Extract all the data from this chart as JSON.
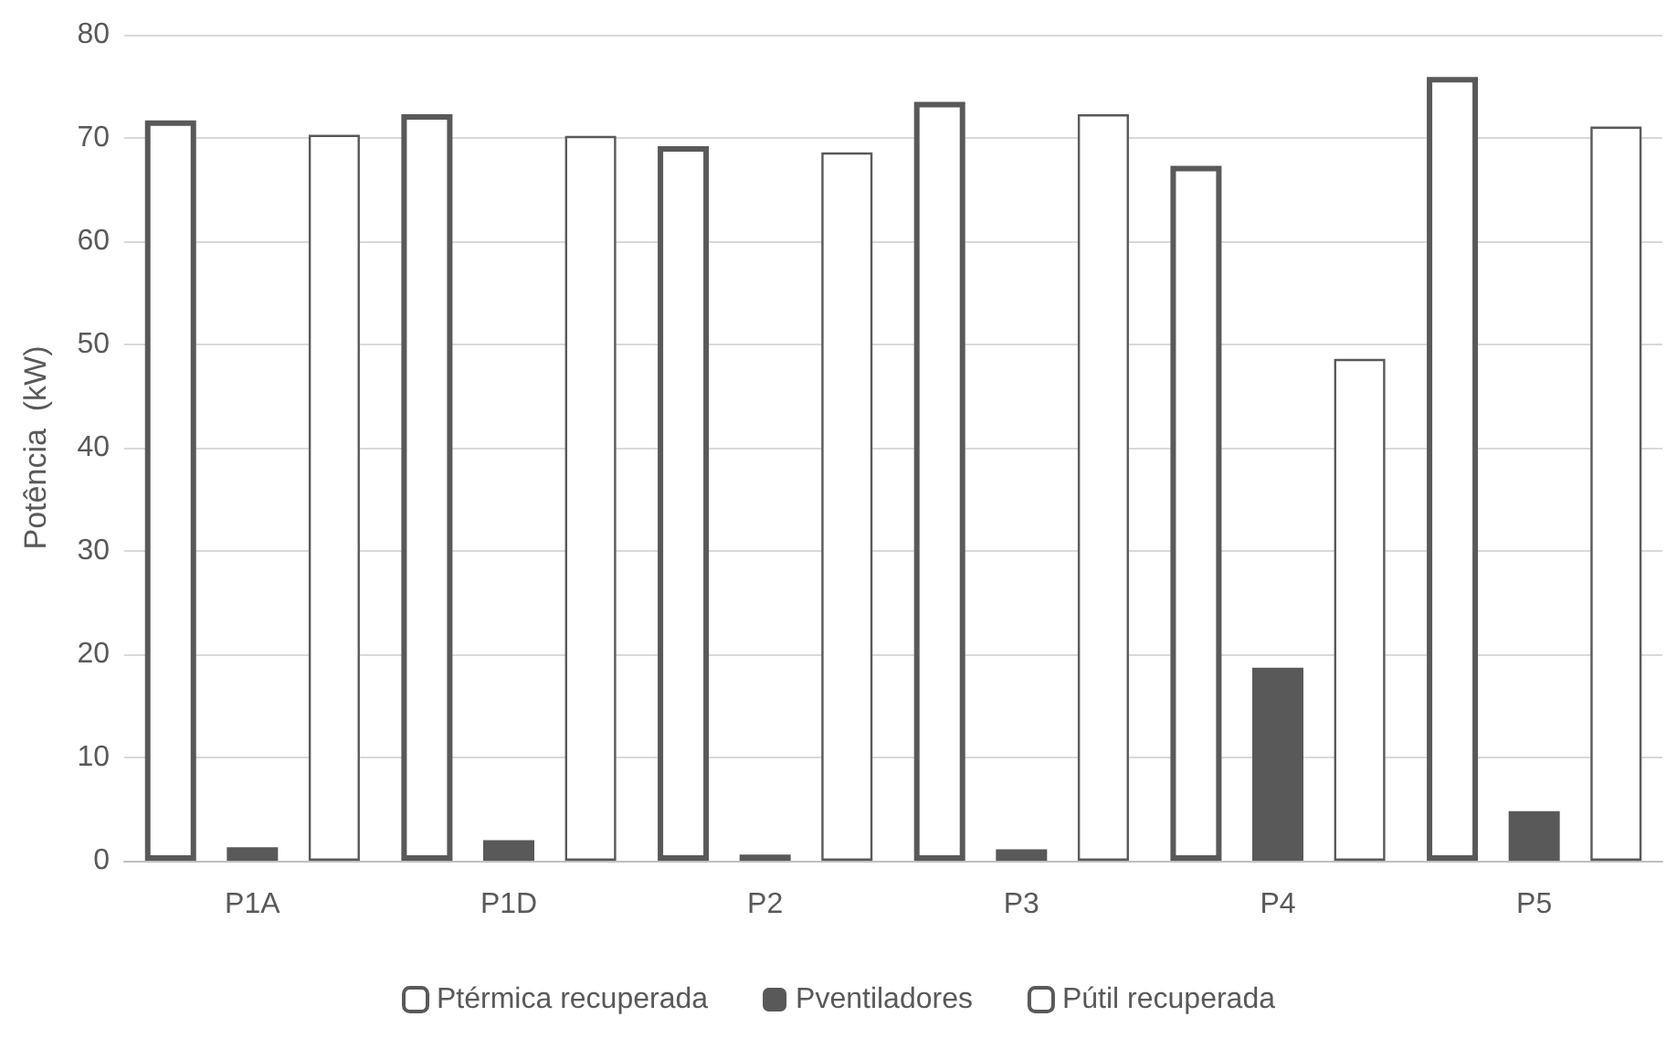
{
  "chart_data": {
    "type": "bar",
    "ylabel": "Potência  (kW)",
    "categories": [
      "P1A",
      "P1D",
      "P2",
      "P3",
      "P4",
      "P5"
    ],
    "series": [
      {
        "name": "Ptérmica recuperada",
        "color": "#ffffff",
        "values": [
          71.7,
          72.3,
          69.2,
          73.5,
          67.3,
          75.9
        ]
      },
      {
        "name": "Pventiladores",
        "color": "#595959",
        "values": [
          1.3,
          2.0,
          0.6,
          1.1,
          18.7,
          4.8
        ]
      },
      {
        "name": "Pútil recuperada",
        "color": "#ffffff",
        "values": [
          70.3,
          70.2,
          68.6,
          72.3,
          48.6,
          71.1
        ]
      }
    ],
    "ylim": [
      0,
      80
    ],
    "yticks": [
      0,
      10,
      20,
      30,
      40,
      50,
      60,
      70,
      80
    ],
    "grid": "y",
    "legend": "bottom"
  }
}
